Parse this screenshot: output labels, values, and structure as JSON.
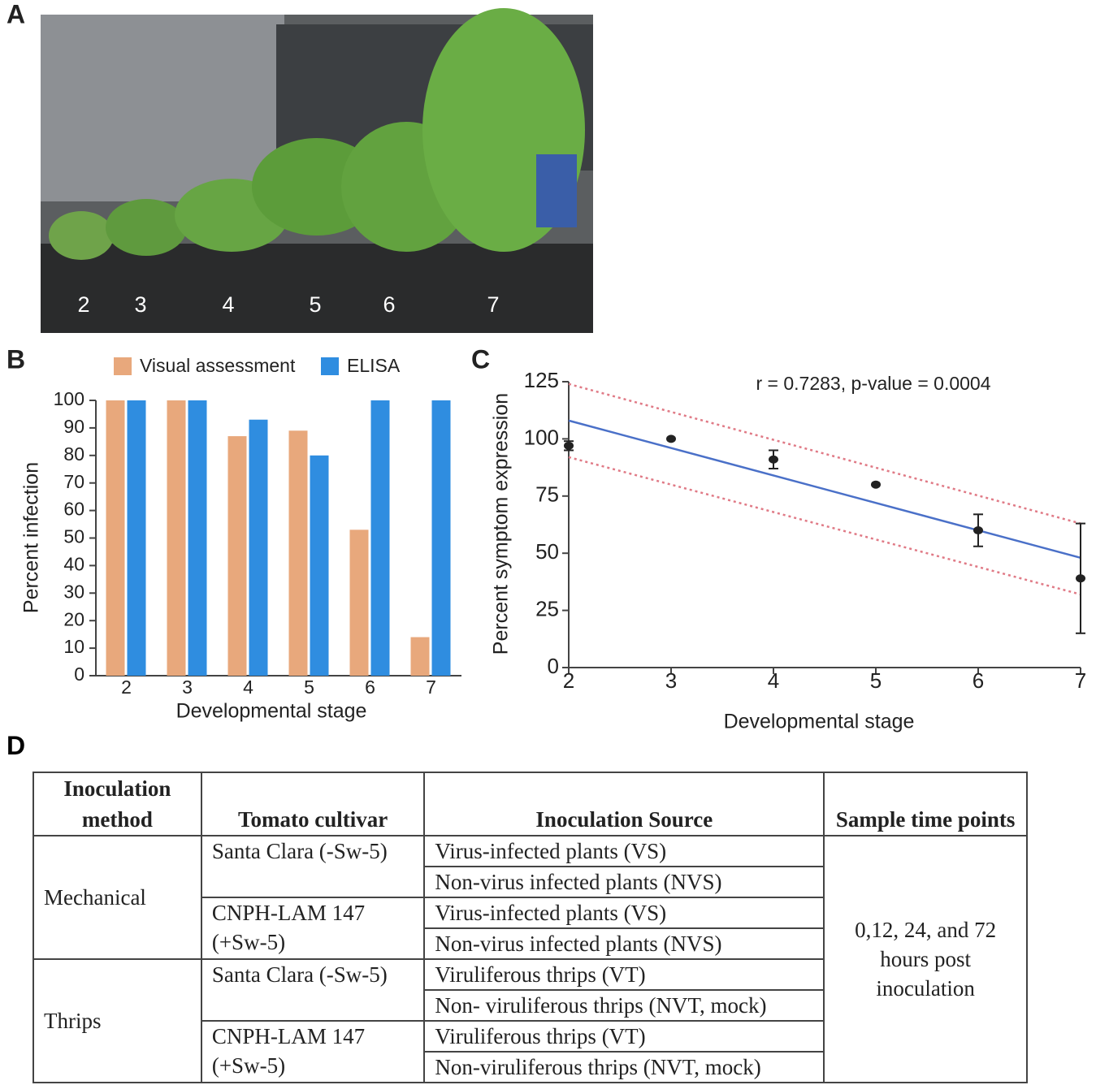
{
  "panels": [
    "A",
    "B",
    "C",
    "D"
  ],
  "photo": {
    "labels": [
      "2",
      "3",
      "4",
      "5",
      "6",
      "7"
    ]
  },
  "chart_data": [
    {
      "type": "bar",
      "xlabel": "Developmental stage",
      "ylabel": "Percent infection",
      "categories": [
        "2",
        "3",
        "4",
        "5",
        "6",
        "7"
      ],
      "series": [
        {
          "name": "Visual assessment",
          "color": "#e8a87c",
          "values": [
            100,
            100,
            87,
            89,
            53,
            14
          ]
        },
        {
          "name": "ELISA",
          "color": "#2f8de0",
          "values": [
            100,
            100,
            93,
            80,
            100,
            100
          ]
        }
      ],
      "ylim": [
        0,
        100
      ],
      "yticks": [
        0,
        10,
        20,
        30,
        40,
        50,
        60,
        70,
        80,
        90,
        100
      ],
      "legend": "top"
    },
    {
      "type": "scatter",
      "xlabel": "Developmental stage",
      "ylabel": "Percent symptom expression",
      "annotation": "r = 0.7283,  p-value = 0.0004",
      "x": [
        2,
        3,
        4,
        5,
        6,
        7
      ],
      "values": [
        97,
        100,
        91,
        80,
        60,
        39
      ],
      "errors": [
        2,
        0,
        4,
        0,
        7,
        24
      ],
      "color": "#222222",
      "lines": [
        {
          "x": [
            2,
            7
          ],
          "values": [
            108,
            48
          ],
          "color": "#4a70c8",
          "style": "solid"
        },
        {
          "x": [
            2,
            7
          ],
          "values": [
            124,
            63
          ],
          "color": "#e07a86",
          "style": "dotted"
        },
        {
          "x": [
            2,
            7
          ],
          "values": [
            92,
            32
          ],
          "color": "#e07a86",
          "style": "dotted"
        }
      ],
      "xlim": [
        2,
        7
      ],
      "xticks": [
        2,
        3,
        4,
        5,
        6,
        7
      ],
      "ylim": [
        0,
        125
      ],
      "yticks": [
        0,
        25,
        50,
        75,
        100,
        125
      ]
    }
  ],
  "table": {
    "header": [
      "Inoculation method",
      "Tomato cultivar",
      "Inoculation Source",
      "Sample time points"
    ],
    "groups": [
      {
        "method": "Mechanical",
        "cultivars": [
          {
            "name": "Santa Clara (-Sw-5)",
            "sources": [
              "Virus-infected plants (VS)",
              "Non-virus infected plants (NVS)"
            ]
          },
          {
            "name": "CNPH-LAM 147 (+Sw-5)",
            "sources": [
              "Virus-infected plants (VS)",
              "Non-virus infected plants (NVS)"
            ]
          }
        ]
      },
      {
        "method": "Thrips",
        "cultivars": [
          {
            "name": "Santa Clara (-Sw-5)",
            "sources": [
              "Viruliferous thrips (VT)",
              "Non- viruliferous thrips (NVT, mock)"
            ]
          },
          {
            "name": "CNPH-LAM 147 (+Sw-5)",
            "sources": [
              "Viruliferous thrips (VT)",
              "Non-viruliferous thrips (NVT, mock)"
            ]
          }
        ]
      }
    ],
    "time_points": "0,12, 24, and 72 hours post inoculation"
  }
}
